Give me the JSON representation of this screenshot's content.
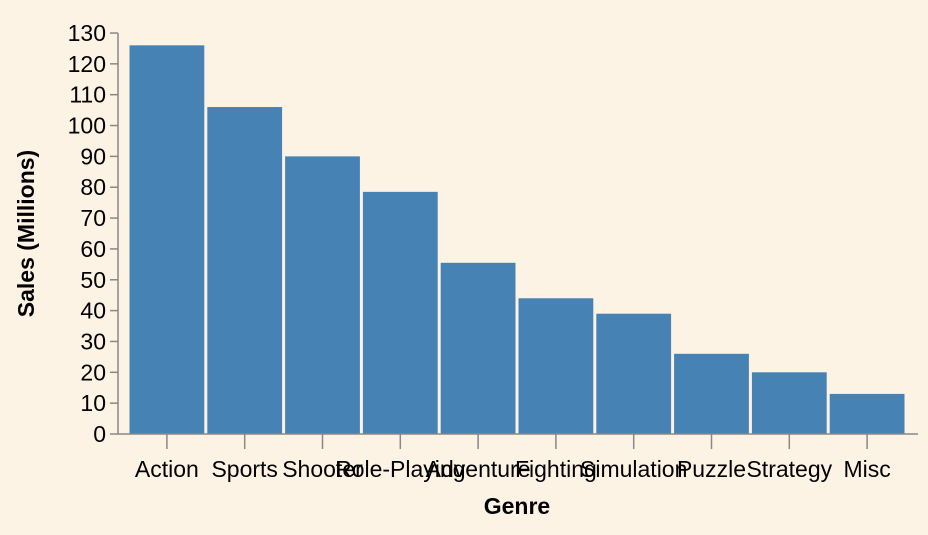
{
  "chart_data": {
    "type": "bar",
    "categories": [
      "Action",
      "Sports",
      "Shooter",
      "Role-Playing",
      "Adventure",
      "Fighting",
      "Simulation",
      "Puzzle",
      "Strategy",
      "Misc"
    ],
    "values": [
      126,
      106,
      90,
      78.5,
      55.5,
      44,
      39,
      26,
      20,
      13
    ],
    "xlabel": "Genre",
    "ylabel": "Sales (Millions)",
    "ylim": [
      0,
      130
    ],
    "yticks": [
      0,
      10,
      20,
      30,
      40,
      50,
      60,
      70,
      80,
      90,
      100,
      110,
      120,
      130
    ],
    "grid": false,
    "colors": {
      "bar": "#4682b4",
      "background": "#fdf3e5",
      "axis": "#888888"
    }
  }
}
